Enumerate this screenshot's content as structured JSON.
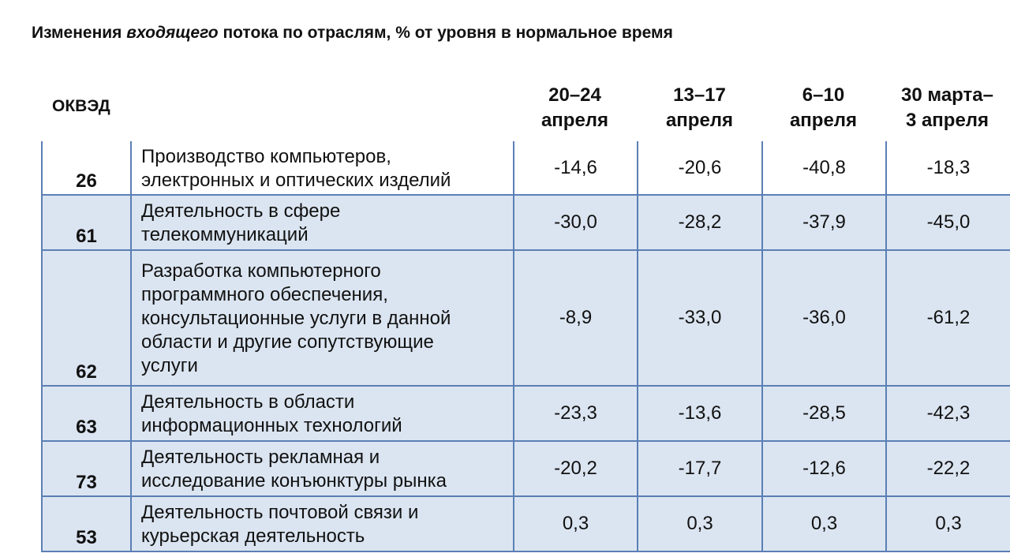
{
  "title": {
    "part1": "Изменения ",
    "emphasis": "входящего",
    "part2": " потока по отраслям, % от уровня в нормальное время"
  },
  "header": {
    "code_label": "ОКВЭД",
    "columns": [
      {
        "line1": "20–24",
        "line2": "апреля"
      },
      {
        "line1": "13–17",
        "line2": "апреля"
      },
      {
        "line1": "6–10",
        "line2": "апреля"
      },
      {
        "line1": "30 марта–",
        "line2": "3 апреля"
      }
    ]
  },
  "chart_data": {
    "type": "table",
    "columns": [
      "20–24 апреля",
      "13–17 апреля",
      "6–10 апреля",
      "30 марта–3 апреля"
    ],
    "rows": [
      {
        "code": "26",
        "lines": [
          "Производство компьютеров,",
          "электронных и оптических изделий"
        ],
        "values": [
          "-14,6",
          "-20,6",
          "-40,8",
          "-18,3"
        ]
      },
      {
        "code": "61",
        "lines": [
          "Деятельность в сфере",
          "телекоммуникаций"
        ],
        "values": [
          "-30,0",
          "-28,2",
          "-37,9",
          "-45,0"
        ]
      },
      {
        "code": "62",
        "lines": [
          "Разработка компьютерного",
          "программного обеспечения,",
          "консультационные услуги в данной",
          "области и другие сопутствующие",
          "услуги"
        ],
        "values": [
          "-8,9",
          "-33,0",
          "-36,0",
          "-61,2"
        ]
      },
      {
        "code": "63",
        "lines": [
          "Деятельность в области",
          "информационных технологий"
        ],
        "values": [
          "-23,3",
          "-13,6",
          "-28,5",
          "-42,3"
        ]
      },
      {
        "code": "73",
        "lines": [
          "Деятельность рекламная и",
          "исследование конъюнктуры рынка"
        ],
        "values": [
          "-20,2",
          "-17,7",
          "-12,6",
          "-22,2"
        ]
      },
      {
        "code": "53",
        "lines": [
          "Деятельность почтовой связи и",
          "курьерская деятельность"
        ],
        "values": [
          "0,3",
          "0,3",
          "0,3",
          "0,3"
        ]
      }
    ]
  },
  "colors": {
    "grid_line": "#5b7fb5",
    "row_shade": "#dbe5f1"
  }
}
